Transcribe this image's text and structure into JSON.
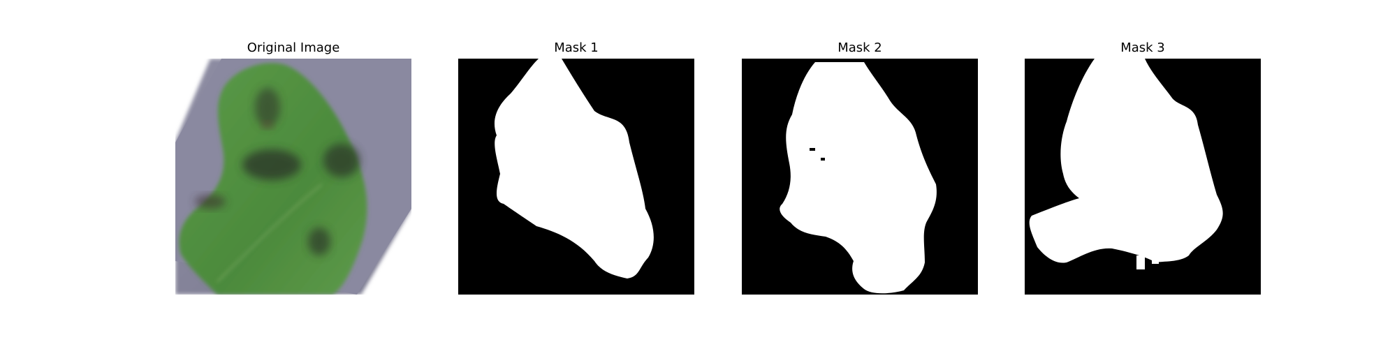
{
  "figure": {
    "panels": [
      {
        "title": "Original Image",
        "kind": "photo"
      },
      {
        "title": "Mask 1",
        "kind": "mask"
      },
      {
        "title": "Mask 2",
        "kind": "mask"
      },
      {
        "title": "Mask 3",
        "kind": "mask"
      }
    ]
  },
  "colors": {
    "background": "#ffffff",
    "mask_background": "#000000",
    "mask_foreground": "#ffffff",
    "photo_surface": "#85849a",
    "leaf_green": "#4f8f3e",
    "leaf_dark_spot": "#2d3a26"
  }
}
